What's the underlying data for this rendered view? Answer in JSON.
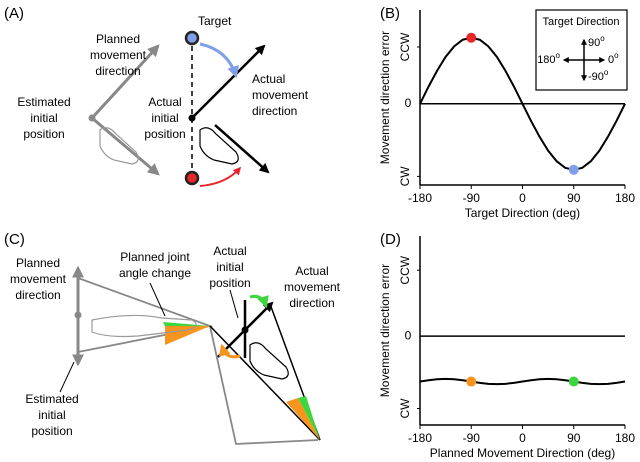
{
  "panel_labels": [
    "(A)",
    "(B)",
    "(C)",
    "(D)"
  ],
  "diagram_a": {
    "target": "Target",
    "planned_direction": [
      "Planned",
      "movement",
      "direction"
    ],
    "actual_direction": [
      "Actual",
      "movement",
      "direction"
    ],
    "estimated_position": [
      "Estimated",
      "initial",
      "position"
    ],
    "actual_position": [
      "Actual",
      "initial",
      "position"
    ]
  },
  "diagram_c": {
    "joint_angle": [
      "Planned joint",
      "angle change"
    ],
    "planned_direction": [
      "Planned",
      "movement",
      "direction"
    ],
    "actual_position": [
      "Actual",
      "initial",
      "position"
    ],
    "actual_direction": [
      "Actual",
      "movement",
      "direction"
    ],
    "estimated_position": [
      "Estimated",
      "initial",
      "position"
    ]
  },
  "chart_data": [
    {
      "type": "line",
      "xlabel": "Target Direction (deg)",
      "ylabel": "Movement direction error",
      "x": [
        -180,
        -165,
        -150,
        -135,
        -120,
        -105,
        -90,
        -75,
        -60,
        -45,
        -30,
        -15,
        0,
        15,
        30,
        45,
        60,
        75,
        90,
        105,
        120,
        135,
        150,
        165,
        180
      ],
      "series": [
        {
          "color": "#000000",
          "values": [
            0,
            0.26,
            0.5,
            0.71,
            0.87,
            0.97,
            1,
            0.97,
            0.87,
            0.71,
            0.5,
            0.26,
            0,
            -0.26,
            -0.5,
            -0.71,
            -0.87,
            -0.97,
            -1,
            -0.97,
            -0.87,
            -0.71,
            -0.5,
            -0.26,
            0
          ]
        }
      ],
      "points": [
        {
          "x": -90,
          "y": 1,
          "color": "#e8262a"
        },
        {
          "x": 90,
          "y": -1,
          "color": "#7f9fe8"
        }
      ],
      "xlim": [
        -180,
        180
      ],
      "xticks": [
        -180,
        -90,
        0,
        90,
        180
      ],
      "ylim": [
        -1.23,
        1.42
      ],
      "yticks": [
        {
          "value": -1.1,
          "label": "CW"
        },
        0,
        {
          "value": 0.86,
          "label": "CCW"
        }
      ],
      "inset": {
        "title": "Target Direction",
        "labels": [
          "90",
          "0",
          "-90",
          "180"
        ],
        "degree": "o"
      }
    },
    {
      "type": "line",
      "xlabel": "Planned Movement Direction (deg)",
      "ylabel": "Movement direction error",
      "x": [
        -180,
        -165,
        -150,
        -135,
        -120,
        -105,
        -90,
        -75,
        -60,
        -45,
        -30,
        -15,
        0,
        15,
        30,
        45,
        60,
        75,
        90,
        105,
        120,
        135,
        150,
        165,
        180
      ],
      "series": [
        {
          "color": "#000000",
          "values": [
            -0.69,
            -0.67,
            -0.655,
            -0.65,
            -0.655,
            -0.67,
            -0.69,
            -0.71,
            -0.725,
            -0.73,
            -0.725,
            -0.71,
            -0.69,
            -0.67,
            -0.655,
            -0.65,
            -0.655,
            -0.67,
            -0.69,
            -0.71,
            -0.725,
            -0.73,
            -0.725,
            -0.71,
            -0.69
          ]
        }
      ],
      "points": [
        {
          "x": -90,
          "y": -0.69,
          "color": "#f7941d"
        },
        {
          "x": 90,
          "y": -0.69,
          "color": "#3ed63e"
        }
      ],
      "xlim": [
        -180,
        180
      ],
      "xticks": [
        -180,
        -90,
        0,
        90,
        180
      ],
      "ylim": [
        -1.35,
        1.52
      ],
      "yticks": [
        {
          "value": -1.1,
          "label": "CW"
        },
        0,
        {
          "value": 1.0,
          "label": "CCW"
        }
      ]
    }
  ]
}
